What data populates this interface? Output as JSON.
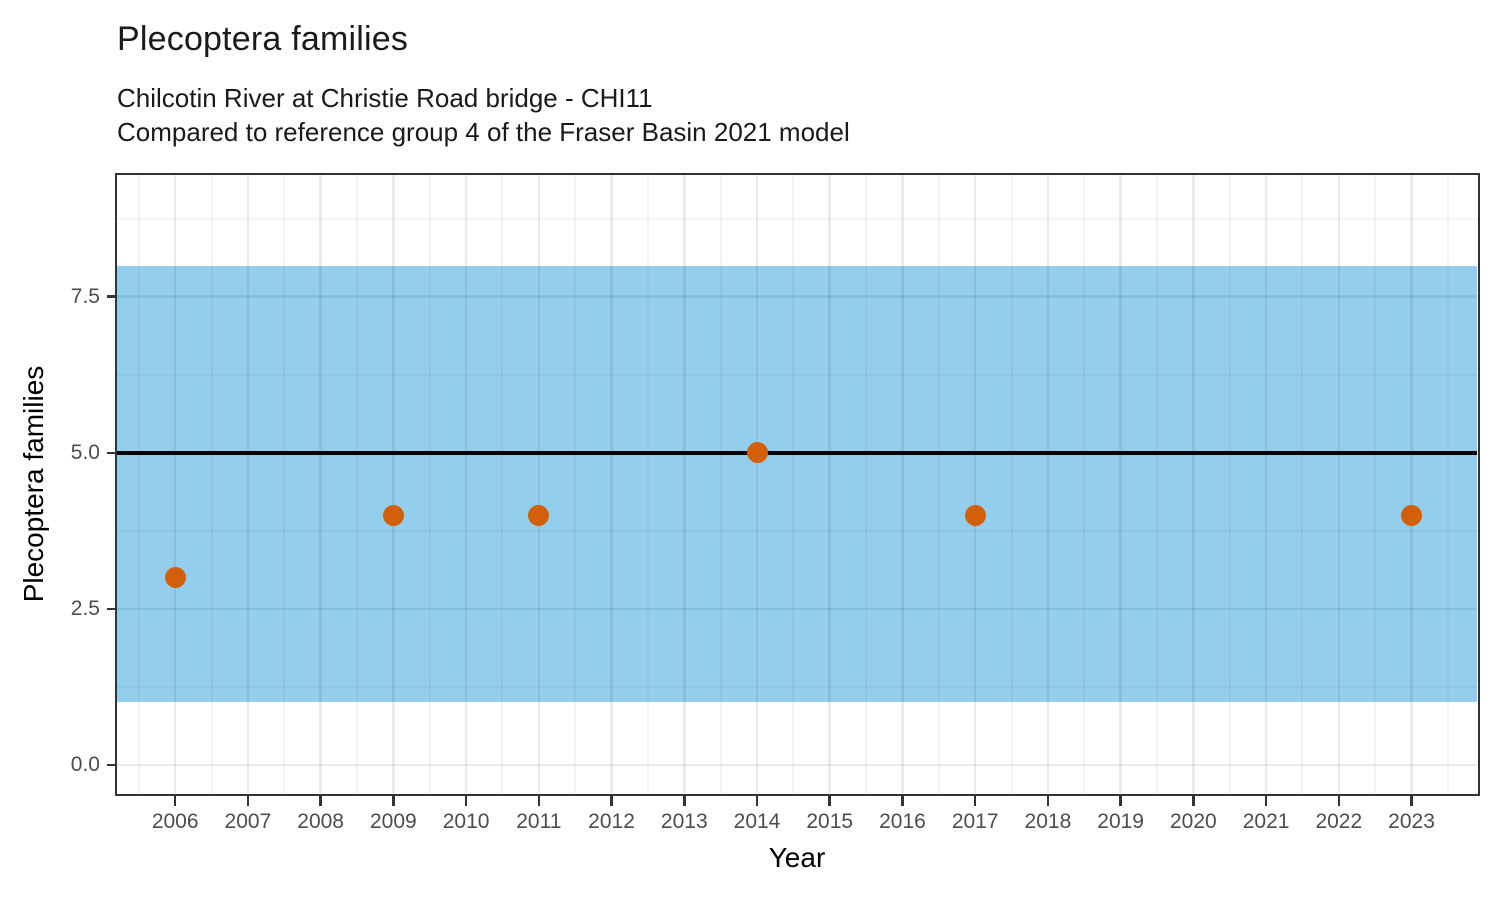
{
  "header": {
    "title": "Plecoptera families",
    "subtitle1": "Chilcotin River at Christie Road bridge - CHI11",
    "subtitle2": "Compared to reference group 4 of the Fraser Basin 2021 model"
  },
  "axes": {
    "x_title": "Year",
    "y_title": "Plecoptera families"
  },
  "chart_data": {
    "type": "scatter",
    "title": "Plecoptera families",
    "subtitle": [
      "Chilcotin River at Christie Road bridge - CHI11",
      "Compared to reference group 4 of the Fraser Basin 2021 model"
    ],
    "xlabel": "Year",
    "ylabel": "Plecoptera families",
    "points": [
      {
        "year": 2006,
        "value": 3
      },
      {
        "year": 2009,
        "value": 4
      },
      {
        "year": 2011,
        "value": 4
      },
      {
        "year": 2014,
        "value": 5
      },
      {
        "year": 2017,
        "value": 4
      },
      {
        "year": 2023,
        "value": 4
      }
    ],
    "x_ticks": [
      2006,
      2007,
      2008,
      2009,
      2010,
      2011,
      2012,
      2013,
      2014,
      2015,
      2016,
      2017,
      2018,
      2019,
      2020,
      2021,
      2022,
      2023
    ],
    "y_ticks": [
      0,
      2.5,
      5,
      7.5
    ],
    "y_tick_labels": [
      "0.0",
      "2.5",
      "5.0",
      "7.5"
    ],
    "xlim": [
      2005.2,
      2023.9
    ],
    "ylim": [
      -0.45,
      9.45
    ],
    "reference_line_y": 5,
    "reference_band": {
      "ymin": 1,
      "ymax": 8
    },
    "grid": "major+minor vertical and horizontal",
    "legend": "none",
    "colors": {
      "point": "#D35F0A",
      "band": "#93CFEC",
      "reference_line": "#000000",
      "grid_major_on_white": "#EBEBEB",
      "axis_text": "#4D4D4D",
      "panel_border": "#333333"
    }
  }
}
